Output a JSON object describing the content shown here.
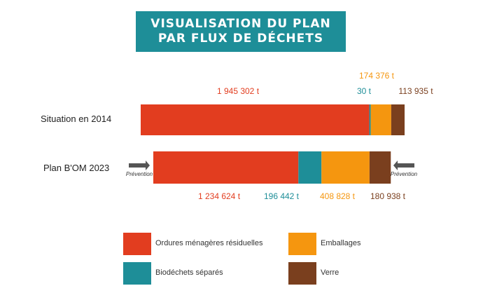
{
  "title": {
    "line1": "VISUALISATION DU PLAN",
    "line2": "PAR FLUX DE DÉCHETS"
  },
  "colors": {
    "ordures": "#e23d1f",
    "biodechets": "#1e8e98",
    "emballages": "#f5960f",
    "verre": "#7a3f1e",
    "arrow": "#555555"
  },
  "prevention_label": "Prévention",
  "chart_data": {
    "type": "bar",
    "orientation": "horizontal",
    "stacked": true,
    "categories": [
      "Situation en 2014",
      "Plan B'OM 2023"
    ],
    "series": [
      {
        "name": "Ordures ménagères résiduelles",
        "values": [
          1945302,
          1234624
        ],
        "labels": [
          "1 945 302 t",
          "1 234 624 t"
        ],
        "color": "#e23d1f"
      },
      {
        "name": "Biodéchets séparés",
        "values": [
          30,
          196442
        ],
        "labels": [
          "30 t",
          "196 442 t"
        ],
        "color": "#1e8e98"
      },
      {
        "name": "Emballages",
        "values": [
          174376,
          408828
        ],
        "labels": [
          "174 376 t",
          "408 828 t"
        ],
        "color": "#f5960f"
      },
      {
        "name": "Verre",
        "values": [
          113935,
          180938
        ],
        "labels": [
          "113 935 t",
          "180 938 t"
        ],
        "color": "#7a3f1e"
      }
    ],
    "legend": [
      {
        "label": "Ordures ménagères résiduelles",
        "color": "#e23d1f"
      },
      {
        "label": "Emballages",
        "color": "#f5960f"
      },
      {
        "label": "Biodéchets séparés",
        "color": "#1e8e98"
      },
      {
        "label": "Verre",
        "color": "#7a3f1e"
      }
    ],
    "legend_position": "bottom"
  }
}
